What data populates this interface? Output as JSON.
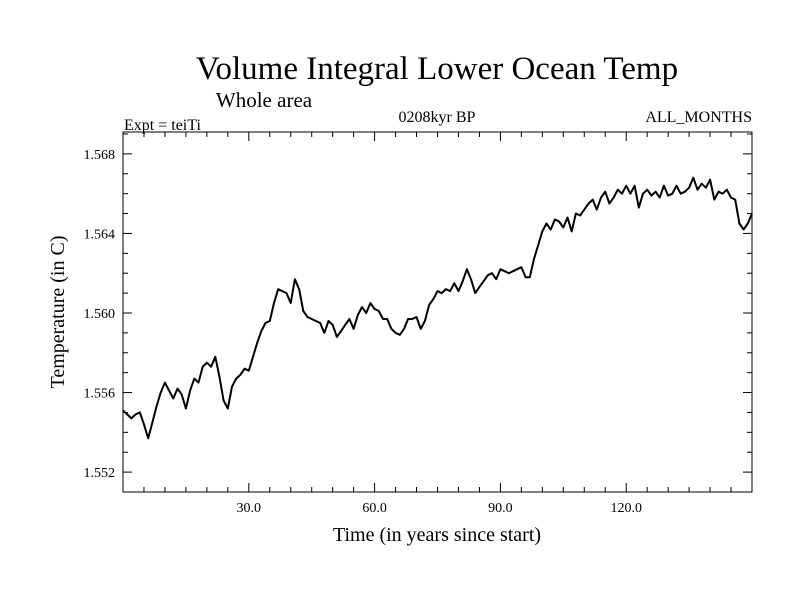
{
  "chart_data": {
    "type": "line",
    "title": "Volume Integral Lower Ocean Temp",
    "subtitle": "Whole area",
    "left_annotation": "Expt = teiTi",
    "center_annotation": "0208kyr BP",
    "right_annotation": "ALL_MONTHS",
    "xlabel": "Time (in years since start)",
    "ylabel": "Temperature (in C)",
    "xlim": [
      0,
      150
    ],
    "ylim": [
      1.551,
      1.5691
    ],
    "xticks": [
      30,
      60,
      90,
      120
    ],
    "xtick_labels": [
      "30.0",
      "60.0",
      "90.0",
      "120.0"
    ],
    "yticks": [
      1.552,
      1.556,
      1.56,
      1.564,
      1.568
    ],
    "ytick_labels": [
      "1.552",
      "1.556",
      "1.560",
      "1.564",
      "1.568"
    ],
    "grid": false,
    "series": [
      {
        "name": "Lower Ocean Temp",
        "color": "#000000",
        "x": [
          0,
          1,
          2,
          3,
          4,
          5,
          6,
          7,
          8,
          9,
          10,
          11,
          12,
          13,
          14,
          15,
          16,
          17,
          18,
          19,
          20,
          21,
          22,
          23,
          24,
          25,
          26,
          27,
          28,
          29,
          30,
          31,
          32,
          33,
          34,
          35,
          36,
          37,
          38,
          39,
          40,
          41,
          42,
          43,
          44,
          45,
          46,
          47,
          48,
          49,
          50,
          51,
          52,
          53,
          54,
          55,
          56,
          57,
          58,
          59,
          60,
          61,
          62,
          63,
          64,
          65,
          66,
          67,
          68,
          69,
          70,
          71,
          72,
          73,
          74,
          75,
          76,
          77,
          78,
          79,
          80,
          81,
          82,
          83,
          84,
          85,
          86,
          87,
          88,
          89,
          90,
          91,
          92,
          93,
          94,
          95,
          96,
          97,
          98,
          99,
          100,
          101,
          102,
          103,
          104,
          105,
          106,
          107,
          108,
          109,
          110,
          111,
          112,
          113,
          114,
          115,
          116,
          117,
          118,
          119,
          120,
          121,
          122,
          123,
          124,
          125,
          126,
          127,
          128,
          129,
          130,
          131,
          132,
          133,
          134,
          135,
          136,
          137,
          138,
          139,
          140,
          141,
          142,
          143,
          144,
          145,
          146,
          147,
          148,
          149,
          150
        ],
        "y": [
          1.5551,
          1.5549,
          1.5547,
          1.5549,
          1.555,
          1.5544,
          1.5537,
          1.5545,
          1.5553,
          1.556,
          1.5565,
          1.5561,
          1.5557,
          1.5562,
          1.5559,
          1.5552,
          1.5561,
          1.5567,
          1.5565,
          1.5573,
          1.5575,
          1.5573,
          1.5578,
          1.5568,
          1.5556,
          1.5552,
          1.5563,
          1.5567,
          1.5569,
          1.5572,
          1.5571,
          1.5578,
          1.5585,
          1.5591,
          1.5595,
          1.5596,
          1.5605,
          1.5612,
          1.5611,
          1.561,
          1.5605,
          1.5617,
          1.5612,
          1.5601,
          1.5598,
          1.5597,
          1.5596,
          1.5595,
          1.559,
          1.5596,
          1.5594,
          1.5588,
          1.5591,
          1.5594,
          1.5597,
          1.5592,
          1.5599,
          1.5603,
          1.56,
          1.5605,
          1.5602,
          1.5601,
          1.5597,
          1.5597,
          1.5592,
          1.559,
          1.5589,
          1.5592,
          1.5597,
          1.5597,
          1.5598,
          1.5592,
          1.5596,
          1.5604,
          1.5607,
          1.5611,
          1.561,
          1.5612,
          1.5611,
          1.5615,
          1.5611,
          1.5616,
          1.5622,
          1.5617,
          1.561,
          1.5613,
          1.5616,
          1.5619,
          1.562,
          1.5617,
          1.5622,
          1.5621,
          1.562,
          1.5621,
          1.5622,
          1.5623,
          1.5618,
          1.5618,
          1.5627,
          1.5634,
          1.5641,
          1.5645,
          1.5642,
          1.5647,
          1.5646,
          1.5643,
          1.5648,
          1.5641,
          1.565,
          1.5649,
          1.5652,
          1.5655,
          1.5657,
          1.5652,
          1.5658,
          1.5661,
          1.5655,
          1.5658,
          1.5662,
          1.566,
          1.5664,
          1.566,
          1.5664,
          1.5653,
          1.566,
          1.5662,
          1.5659,
          1.5661,
          1.5658,
          1.5664,
          1.5659,
          1.566,
          1.5664,
          1.566,
          1.5661,
          1.5663,
          1.5668,
          1.5662,
          1.5665,
          1.5663,
          1.5667,
          1.5657,
          1.5661,
          1.566,
          1.5662,
          1.5658,
          1.5657,
          1.5645,
          1.5642,
          1.5645,
          1.565
        ]
      }
    ]
  }
}
